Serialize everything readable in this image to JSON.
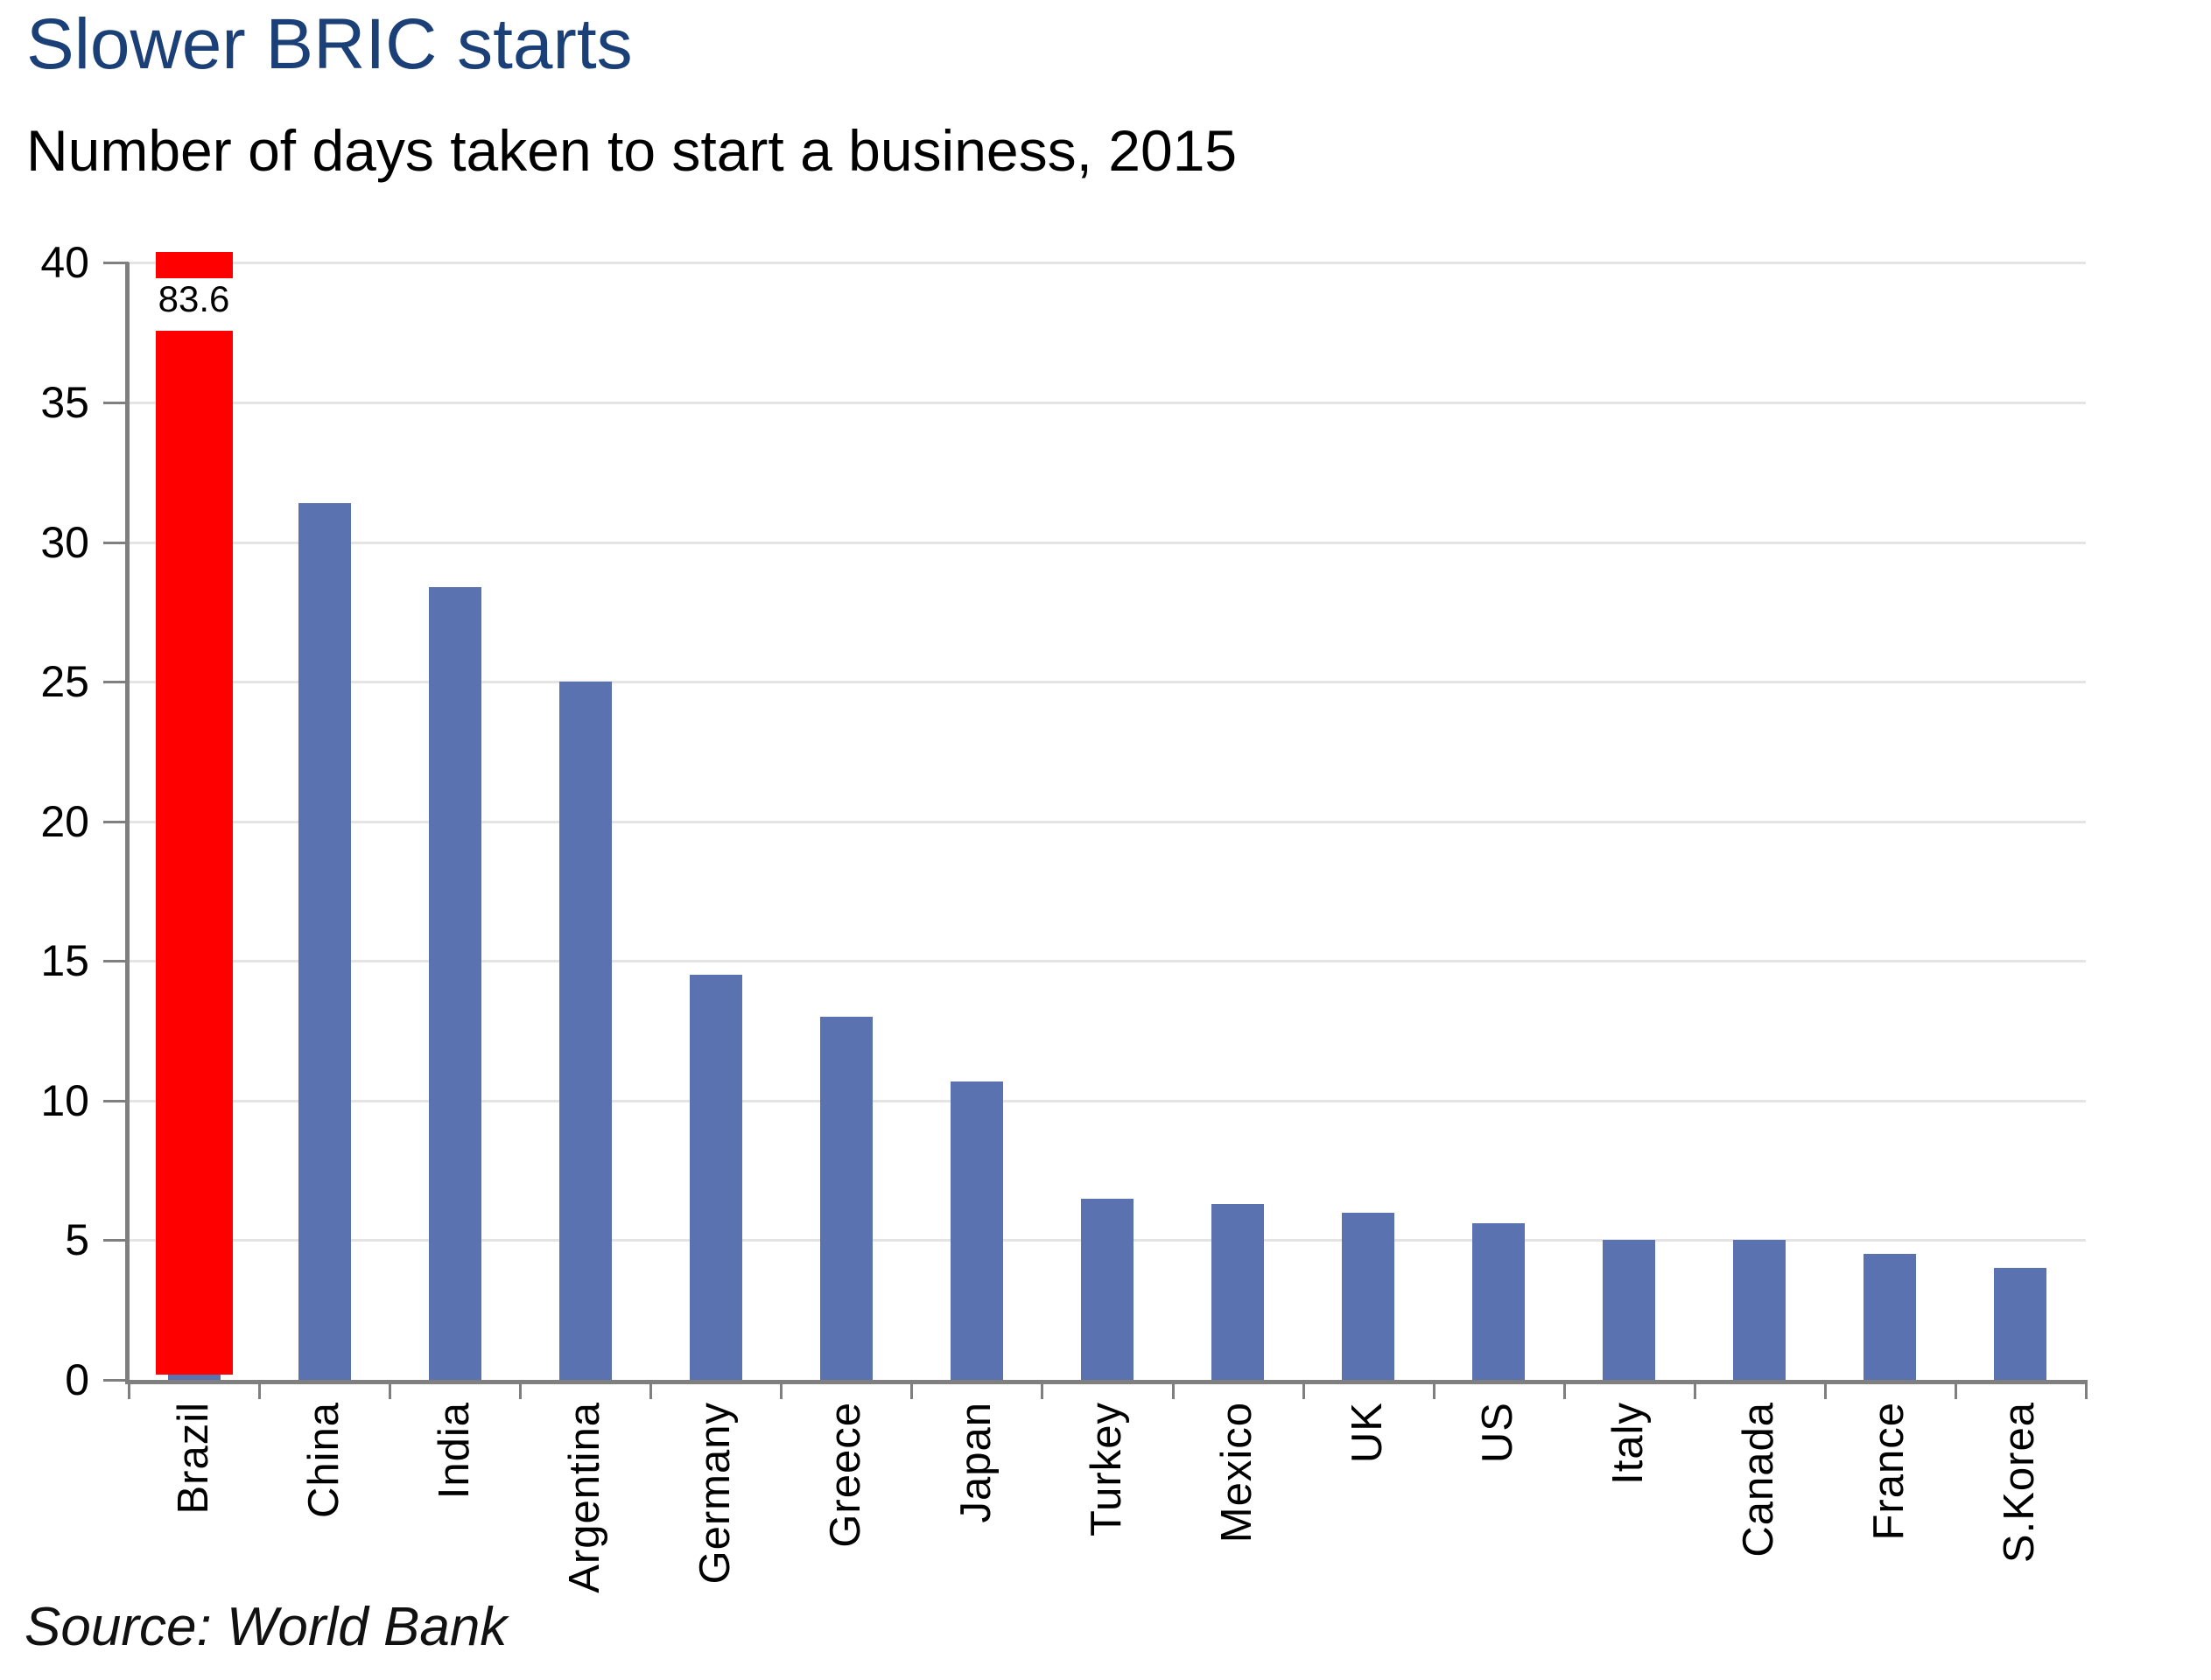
{
  "header": {
    "title": "Slower BRIC starts",
    "subtitle": "Number of days taken to start a business, 2015"
  },
  "source": {
    "text": "Source: World Bank"
  },
  "colors": {
    "title_text": "#1B4077",
    "body_text": "#000000",
    "bar_blue": "#5A73B0",
    "highlight_red": "#FF0000",
    "gridline": "#E4E4E4",
    "axis": "#7F7F7F"
  },
  "chart_data": {
    "type": "bar",
    "title": "Slower BRIC starts",
    "subtitle": "Number of days taken to start a business, 2015",
    "source": "Source: World Bank",
    "categories": [
      "Brazil",
      "China",
      "India",
      "Argentina",
      "Germany",
      "Greece",
      "Japan",
      "Turkey",
      "Mexico",
      "UK",
      "US",
      "Italy",
      "Canada",
      "France",
      "S.Korea"
    ],
    "values": [
      83.6,
      31.4,
      28.4,
      25,
      14.5,
      13,
      10.7,
      6.5,
      6.3,
      6,
      5.6,
      5,
      5,
      4.5,
      4
    ],
    "highlight_category": "Brazil",
    "highlight_value_label": "83.6",
    "highlight_drawn_broken": true,
    "xlabel": "",
    "ylabel": "",
    "ylim": [
      0,
      40
    ],
    "yticks": [
      0,
      5,
      10,
      15,
      20,
      25,
      30,
      35,
      40
    ],
    "grid": "horizontal",
    "legend": "none",
    "bar_color": "#5A73B0",
    "highlight_color": "#FF0000"
  }
}
